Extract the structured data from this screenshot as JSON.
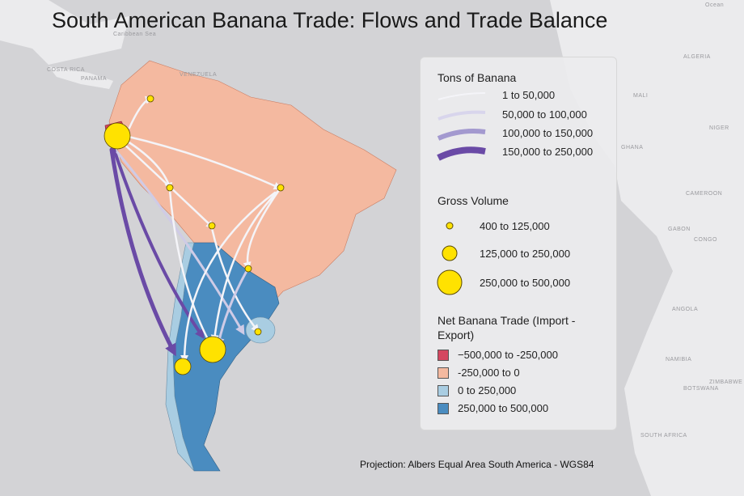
{
  "title": "South American Banana Trade: Flows and Trade Balance",
  "legend": {
    "flows": {
      "title": "Tons of Banana",
      "items": [
        "1 to 50,000",
        "50,000 to 100,000",
        "100,000 to 150,000",
        "150,000 to 250,000"
      ]
    },
    "volume": {
      "title": "Gross Volume",
      "items": [
        "400 to 125,000",
        "125,000 to 250,000",
        "250,000 to 500,000"
      ]
    },
    "net_trade": {
      "title": "Net Banana Trade (Import - Export)",
      "items": [
        "−500,000 to -250,000",
        "-250,000 to 0",
        "0 to 250,000",
        "250,000 to 500,000"
      ]
    }
  },
  "projection": "Projection: Albers Equal Area South America - WGS84",
  "basemap_labels": [
    "Ocean",
    "Caribbean Sea",
    "COSTA RICA",
    "PANAMA",
    "VENEZUELA",
    "ALGERIA",
    "MALI",
    "NIGER",
    "GHANA",
    "CAMEROON",
    "GABON",
    "CONGO",
    "ANGOLA",
    "NAMIBIA",
    "BOTSWANA",
    "ZIMBABWE",
    "SOUTH AFRICA"
  ]
}
